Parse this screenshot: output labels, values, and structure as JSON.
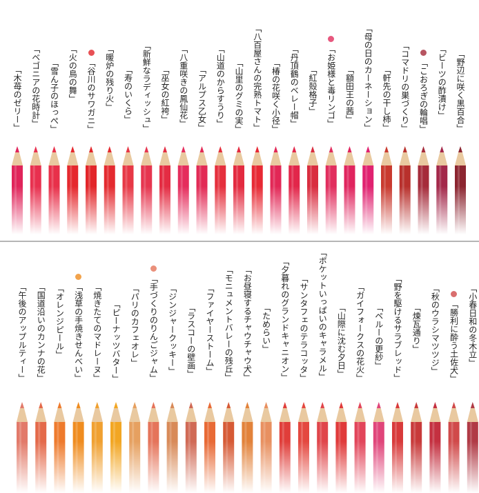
{
  "rows": [
    {
      "pencils": [
        {
          "label": "「木苺のゼリー」",
          "color": "#e0245a"
        },
        {
          "label": "「ベゴニアの花時計」",
          "color": "#e8304f"
        },
        {
          "label": "「雪ん子のほっぺ」",
          "color": "#e8304a"
        },
        {
          "label": "「火の鳥の舞」",
          "color": "#e5282d"
        },
        {
          "label": "「谷川のサワガニ」",
          "color": "#e2262a",
          "marked": true
        },
        {
          "label": "「暖炉の残り火」",
          "color": "#e42a2f"
        },
        {
          "label": "「寿のいくら」",
          "color": "#e73846"
        },
        {
          "label": "「新鮮なラディッシュ」",
          "color": "#e6354f"
        },
        {
          "label": "「巫女の紅袴」",
          "color": "#e42c43"
        },
        {
          "label": "「八重咲きの鳳仙花」",
          "color": "#e52d5c"
        },
        {
          "label": "「アルプス乙女」",
          "color": "#e22a55"
        },
        {
          "label": "「山道のからすうり」",
          "color": "#e52f3c"
        },
        {
          "label": "「山里のグミの実」",
          "color": "#e32b40"
        },
        {
          "label": "「八百屋さんの完熟トマト」",
          "color": "#e72934"
        },
        {
          "label": "「椿の花咲く小径」",
          "color": "#e22756"
        },
        {
          "label": "「丹頂鶴のベレー帽」",
          "color": "#e2264a"
        },
        {
          "label": "「紅殻格子」",
          "color": "#d92d3f"
        },
        {
          "label": "「お姫様と毒リンゴ」",
          "color": "#e12e5e",
          "marked": true
        },
        {
          "label": "「額田王の茜」",
          "color": "#e0245e"
        },
        {
          "label": "「母の日のカーネーション」",
          "color": "#e02270"
        },
        {
          "label": "「軒先の干し柿」",
          "color": "#c93a2f"
        },
        {
          "label": "「コマドリの巣づくり」",
          "color": "#b8302c"
        },
        {
          "label": "「こおろぎの輪唱」",
          "color": "#a52b3a",
          "marked": true
        },
        {
          "label": "「ビーツの酢漬け」",
          "color": "#a3284a"
        },
        {
          "label": "「野辺に咲く黒百合」",
          "color": "#8c2530"
        }
      ]
    },
    {
      "pencils": [
        {
          "label": "「午後のアップルティー」",
          "color": "#e27a6a"
        },
        {
          "label": "「国道沿いのカンナの花」",
          "color": "#e46a4a"
        },
        {
          "label": "「オレンジピール」",
          "color": "#ee7a2c"
        },
        {
          "label": "「浅草の手焼きせんべい」",
          "color": "#ef8c1f",
          "marked": true
        },
        {
          "label": "「焼きたてのマドレーヌ」",
          "color": "#f0a030"
        },
        {
          "label": "「ピーナッツバター」",
          "color": "#f2a623"
        },
        {
          "label": "「パリのカフェオレ」",
          "color": "#e6a060"
        },
        {
          "label": "「手づくりのりんごジャム」",
          "color": "#e5745a",
          "marked": true
        },
        {
          "label": "「ジンジャークッキー」",
          "color": "#d88a58"
        },
        {
          "label": "「ラスコーの壁画」",
          "color": "#d06a55"
        },
        {
          "label": "「ファイヤーストーム」",
          "color": "#e86a35"
        },
        {
          "label": "「モニュメントバレーの残丘」",
          "color": "#d65a35"
        },
        {
          "label": "「お昼寝するチャウチャウ犬」",
          "color": "#e2823a"
        },
        {
          "label": "「ためらい」",
          "color": "#e89060"
        },
        {
          "label": "「夕暮れのグランドキャニオン」",
          "color": "#e03e3a"
        },
        {
          "label": "「サンタフェのテラコッタ」",
          "color": "#e4483f"
        },
        {
          "label": "「ポケットいっぱいのキャラメル」",
          "color": "#e0454a"
        },
        {
          "label": "「山際に沈む夕日」",
          "color": "#e03a3a"
        },
        {
          "label": "「ガイフォークスの花火」",
          "color": "#e2455a"
        },
        {
          "label": "「ペルーの更紗」",
          "color": "#e0457a"
        },
        {
          "label": "「野を駆けるサラブレッド」",
          "color": "#d83a3a"
        },
        {
          "label": "「煉瓦通り」",
          "color": "#c83a3a"
        },
        {
          "label": "「秋のウラシマツツジ」",
          "color": "#c43040"
        },
        {
          "label": "「勝利に酔う土佐犬」",
          "color": "#d04a4a",
          "marked": true
        },
        {
          "label": "「小春日和の冬木立」",
          "color": "#b03a45"
        }
      ]
    }
  ]
}
